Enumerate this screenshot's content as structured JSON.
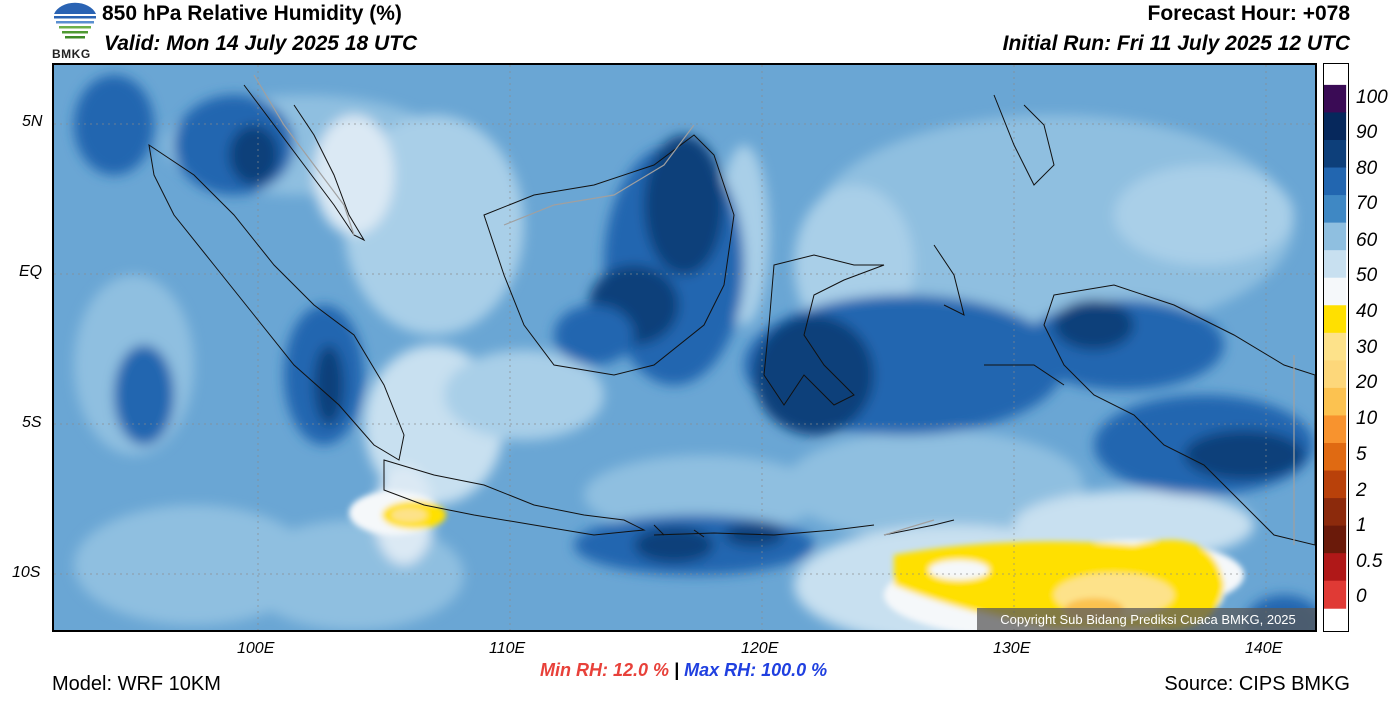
{
  "header": {
    "title": "850 hPa Relative Humidity (%)",
    "valid": "Valid: Mon 14 July 2025 18 UTC",
    "forecast_hour": "Forecast Hour: +078",
    "initial_run": "Initial Run: Fri 11 July 2025 12 UTC"
  },
  "logo": {
    "text": "BMKG"
  },
  "map": {
    "lat_labels": [
      "5N",
      "EQ",
      "5S",
      "10S"
    ],
    "lon_labels": [
      "100E",
      "110E",
      "120E",
      "130E",
      "140E"
    ],
    "copyright": "Copyright Sub Bidang Prediksi Cuaca BMKG, 2025"
  },
  "colorbar": {
    "labels": [
      "100",
      "90",
      "80",
      "70",
      "60",
      "50",
      "40",
      "30",
      "20",
      "10",
      "5",
      "2",
      "1",
      "0.5",
      "0"
    ],
    "colors": [
      "#3a0b55",
      "#06285c",
      "#0d3f7a",
      "#2266b0",
      "#3f88c4",
      "#8fbfe0",
      "#c8e0f0",
      "#f5f8fa",
      "#ffe000",
      "#fde28a",
      "#fdd77a",
      "#fcc250",
      "#f8932e",
      "#e06a12",
      "#b9410a",
      "#8c2a0c",
      "#6a1a0a",
      "#b01818",
      "#e03a35"
    ]
  },
  "stats": {
    "min_rh": "Min RH:  12.0 %",
    "separator": "|",
    "max_rh": "Max RH: 100.0 %"
  },
  "footer": {
    "model": "Model: WRF 10KM",
    "source": "Source: CIPS BMKG"
  }
}
